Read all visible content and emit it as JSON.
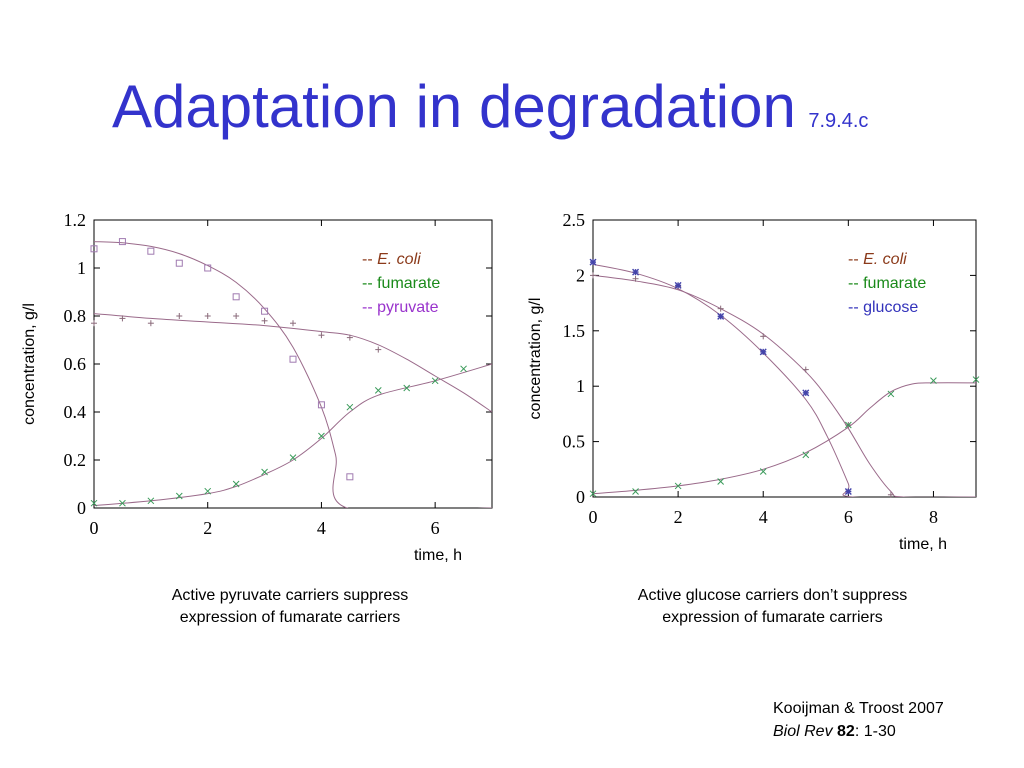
{
  "slide": {
    "title": "Adaptation in degradation",
    "code": "7.9.4.c"
  },
  "colors": {
    "title": "#3333cc",
    "ecoli": "#8b3a1a",
    "fumarate": "#1a8a1a",
    "pyruvate": "#9933cc",
    "glucose": "#3333bb",
    "curve": "#9a6a8a"
  },
  "captions": {
    "left_line1": "Active pyruvate carriers suppress",
    "left_line2": "expression of fumarate carriers",
    "right_line1": "Active glucose carriers don’t suppress",
    "right_line2": "expression of fumarate carriers"
  },
  "reference": {
    "authors": "Kooijman & Troost 2007",
    "journal": "Biol Rev",
    "volume": "82",
    "pages": ": 1-30"
  },
  "chart_data": [
    {
      "type": "scatter",
      "xlabel": "time, h",
      "ylabel": "concentration, g/l",
      "xlim": [
        0,
        7
      ],
      "ylim": [
        0,
        1.2
      ],
      "xticks": [
        "0",
        "2",
        "4",
        "6"
      ],
      "yticks": [
        "0",
        "0.2",
        "0.4",
        "0.6",
        "0.8",
        "1",
        "1.2"
      ],
      "legend": {
        "placement": "top-right",
        "entries": [
          "-- E. coli",
          "-- fumarate",
          "-- pyruvate"
        ]
      },
      "series": [
        {
          "name": "E. coli",
          "marker": "plus",
          "points": [
            [
              0,
              0.77
            ],
            [
              0.5,
              0.79
            ],
            [
              1,
              0.77
            ],
            [
              1.5,
              0.8
            ],
            [
              2,
              0.8
            ],
            [
              2.5,
              0.8
            ],
            [
              3,
              0.78
            ],
            [
              3.5,
              0.77
            ],
            [
              4,
              0.72
            ],
            [
              4.5,
              0.71
            ],
            [
              5,
              0.66
            ]
          ],
          "fit": [
            [
              0,
              0.81
            ],
            [
              1,
              0.79
            ],
            [
              2,
              0.775
            ],
            [
              3,
              0.76
            ],
            [
              4,
              0.735
            ],
            [
              4.5,
              0.72
            ],
            [
              5,
              0.68
            ],
            [
              5.5,
              0.62
            ],
            [
              6,
              0.55
            ],
            [
              6.5,
              0.48
            ],
            [
              7,
              0.4
            ]
          ]
        },
        {
          "name": "fumarate",
          "marker": "cross",
          "points": [
            [
              0,
              0.02
            ],
            [
              0.5,
              0.02
            ],
            [
              1,
              0.03
            ],
            [
              1.5,
              0.05
            ],
            [
              2,
              0.07
            ],
            [
              2.5,
              0.1
            ],
            [
              3,
              0.15
            ],
            [
              3.5,
              0.21
            ],
            [
              4,
              0.3
            ],
            [
              4.5,
              0.42
            ],
            [
              5,
              0.49
            ],
            [
              5.5,
              0.5
            ],
            [
              6,
              0.53
            ],
            [
              6.5,
              0.58
            ]
          ],
          "fit": [
            [
              0,
              0.01
            ],
            [
              1,
              0.03
            ],
            [
              2,
              0.06
            ],
            [
              2.5,
              0.09
            ],
            [
              3,
              0.14
            ],
            [
              3.5,
              0.2
            ],
            [
              4,
              0.29
            ],
            [
              4.5,
              0.4
            ],
            [
              5,
              0.47
            ],
            [
              6,
              0.53
            ],
            [
              7,
              0.6
            ]
          ]
        },
        {
          "name": "pyruvate",
          "marker": "square",
          "points": [
            [
              0,
              1.08
            ],
            [
              0.5,
              1.11
            ],
            [
              1,
              1.07
            ],
            [
              1.5,
              1.02
            ],
            [
              2,
              1.0
            ],
            [
              2.5,
              0.88
            ],
            [
              3,
              0.82
            ],
            [
              3.5,
              0.62
            ],
            [
              4,
              0.43
            ],
            [
              4.5,
              0.13
            ]
          ],
          "fit": [
            [
              0,
              1.11
            ],
            [
              0.5,
              1.105
            ],
            [
              1,
              1.09
            ],
            [
              1.5,
              1.06
            ],
            [
              2,
              1.01
            ],
            [
              2.5,
              0.94
            ],
            [
              3,
              0.83
            ],
            [
              3.5,
              0.67
            ],
            [
              4,
              0.42
            ],
            [
              4.25,
              0.22
            ],
            [
              4.45,
              0.0
            ],
            [
              7,
              0.0
            ]
          ]
        }
      ]
    },
    {
      "type": "scatter",
      "xlabel": "time, h",
      "ylabel": "concentration, g/l",
      "xlim": [
        0,
        9
      ],
      "ylim": [
        0,
        2.5
      ],
      "xticks": [
        "0",
        "2",
        "4",
        "6",
        "8"
      ],
      "yticks": [
        "0",
        "0.5",
        "1",
        "1.5",
        "2",
        "2.5"
      ],
      "legend": {
        "placement": "top-right",
        "entries": [
          "-- E. coli",
          "-- fumarate",
          "-- glucose"
        ]
      },
      "series": [
        {
          "name": "E. coli",
          "marker": "plus",
          "points": [
            [
              0,
              2.0
            ],
            [
              1,
              1.97
            ],
            [
              2,
              1.9
            ],
            [
              3,
              1.7
            ],
            [
              4,
              1.45
            ],
            [
              5,
              1.15
            ],
            [
              6,
              0.65
            ],
            [
              7,
              0.02
            ]
          ],
          "fit": [
            [
              0,
              2.0
            ],
            [
              1,
              1.95
            ],
            [
              2,
              1.87
            ],
            [
              3,
              1.7
            ],
            [
              4,
              1.47
            ],
            [
              5,
              1.13
            ],
            [
              5.5,
              0.9
            ],
            [
              6,
              0.62
            ],
            [
              6.5,
              0.3
            ],
            [
              7,
              0.05
            ],
            [
              7.3,
              0.0
            ],
            [
              9,
              0.0
            ]
          ]
        },
        {
          "name": "fumarate",
          "marker": "cross",
          "points": [
            [
              0,
              0.03
            ],
            [
              1,
              0.05
            ],
            [
              2,
              0.1
            ],
            [
              3,
              0.14
            ],
            [
              4,
              0.23
            ],
            [
              5,
              0.38
            ],
            [
              6,
              0.65
            ],
            [
              7,
              0.93
            ],
            [
              8,
              1.05
            ],
            [
              9,
              1.06
            ]
          ],
          "fit": [
            [
              0,
              0.03
            ],
            [
              1,
              0.06
            ],
            [
              2,
              0.1
            ],
            [
              3,
              0.16
            ],
            [
              4,
              0.25
            ],
            [
              5,
              0.4
            ],
            [
              6,
              0.63
            ],
            [
              6.5,
              0.8
            ],
            [
              7,
              0.95
            ],
            [
              7.5,
              1.02
            ],
            [
              8,
              1.03
            ],
            [
              9,
              1.03
            ]
          ]
        },
        {
          "name": "glucose",
          "marker": "star",
          "points": [
            [
              0,
              2.12
            ],
            [
              1,
              2.03
            ],
            [
              2,
              1.91
            ],
            [
              3,
              1.63
            ],
            [
              4,
              1.31
            ],
            [
              5,
              0.94
            ],
            [
              6,
              0.05
            ]
          ],
          "fit": [
            [
              0,
              2.1
            ],
            [
              1,
              2.02
            ],
            [
              2,
              1.88
            ],
            [
              3,
              1.64
            ],
            [
              4,
              1.3
            ],
            [
              5,
              0.88
            ],
            [
              5.5,
              0.55
            ],
            [
              6,
              0.12
            ],
            [
              6.1,
              0.0
            ],
            [
              9,
              0.0
            ]
          ]
        }
      ]
    }
  ]
}
